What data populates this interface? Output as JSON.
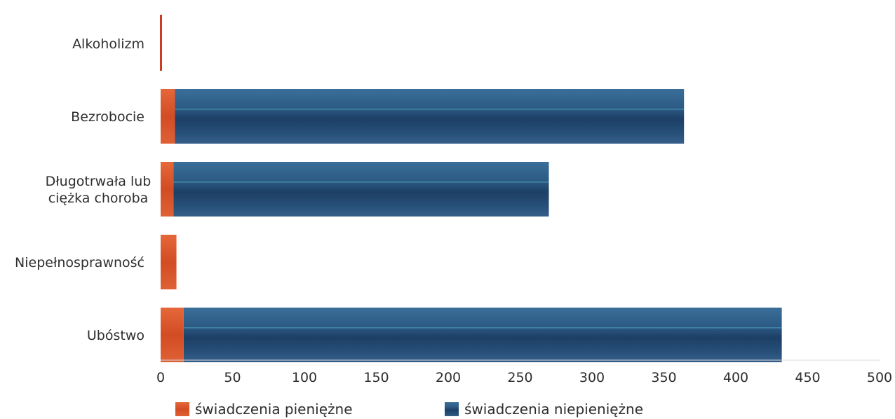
{
  "chart_data": {
    "type": "bar",
    "orientation": "horizontal",
    "stacked": true,
    "title": "",
    "xlabel": "",
    "ylabel": "",
    "categories": [
      [
        "Alkoholizm"
      ],
      [
        "Bezrobocie"
      ],
      [
        "Długotrwała lub",
        "ciężka choroba"
      ],
      [
        "Niepełnosprawność"
      ],
      [
        "Ubóstwo"
      ]
    ],
    "series": [
      {
        "name": "świadczenia pieniężne",
        "color": "#d9542a",
        "values": [
          0,
          10,
          9,
          11,
          16
        ]
      },
      {
        "name": "świadczenia niepieniężne",
        "color": "#1f4a73",
        "values": [
          0,
          354,
          261,
          0,
          416
        ]
      }
    ],
    "xlim": [
      0,
      500
    ],
    "xticks": [
      0,
      50,
      100,
      150,
      200,
      250,
      300,
      350,
      400,
      450,
      500
    ],
    "grid": false,
    "legend": "bottom"
  }
}
